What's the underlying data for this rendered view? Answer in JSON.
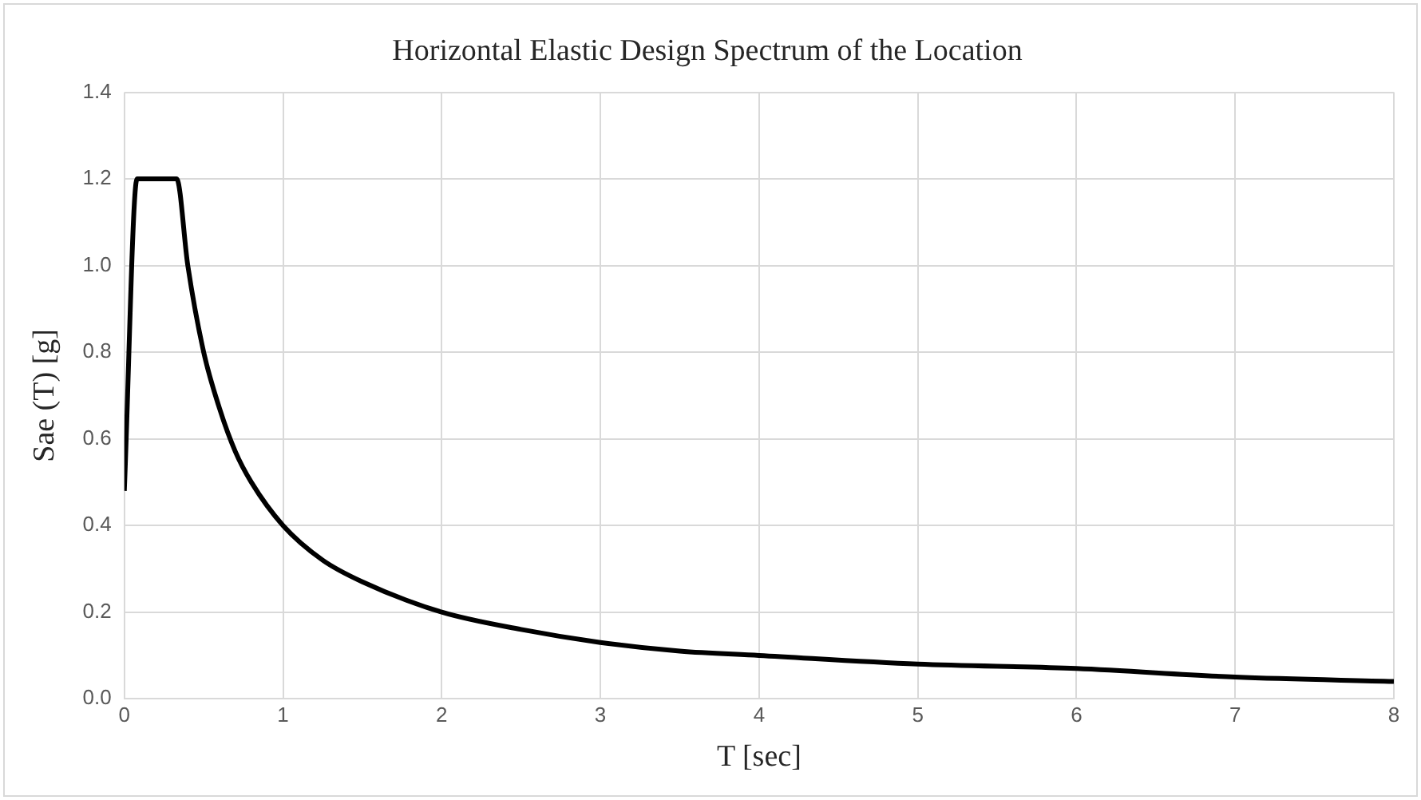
{
  "chart_data": {
    "type": "line",
    "title": "Horizontal Elastic Design Spectrum of the Location",
    "xlabel": "T [sec]",
    "ylabel": "Sae (T) [g]",
    "x": [
      0,
      0.08,
      0.33,
      0.4,
      0.5,
      0.6,
      0.7,
      0.8,
      1,
      1.25,
      1.5,
      2,
      2.5,
      3,
      3.5,
      4,
      5,
      6,
      7,
      8
    ],
    "series": [
      {
        "color": "#000000",
        "values": [
          0.48,
          1.2,
          1.2,
          1.0,
          0.8,
          0.67,
          0.57,
          0.5,
          0.4,
          0.32,
          0.27,
          0.2,
          0.16,
          0.13,
          0.11,
          0.1,
          0.08,
          0.07,
          0.05,
          0.04
        ]
      }
    ],
    "xlim": [
      0,
      8
    ],
    "xticks": [
      0,
      1,
      2,
      3,
      4,
      5,
      6,
      7,
      8
    ],
    "ylim": [
      0,
      1.4
    ],
    "yticks": [
      {
        "value": 0,
        "label": "0.0"
      },
      {
        "value": 0.2,
        "label": "0.2"
      },
      {
        "value": 0.4,
        "label": "0.4"
      },
      {
        "value": 0.6,
        "label": "0.6"
      },
      {
        "value": 0.8,
        "label": "0.8"
      },
      {
        "value": 1,
        "label": "1.0"
      },
      {
        "value": 1.2,
        "label": "1.2"
      },
      {
        "value": 1.4,
        "label": "1.4"
      }
    ],
    "grid": true,
    "legend": false,
    "marker": "none",
    "line_style": "solid"
  }
}
